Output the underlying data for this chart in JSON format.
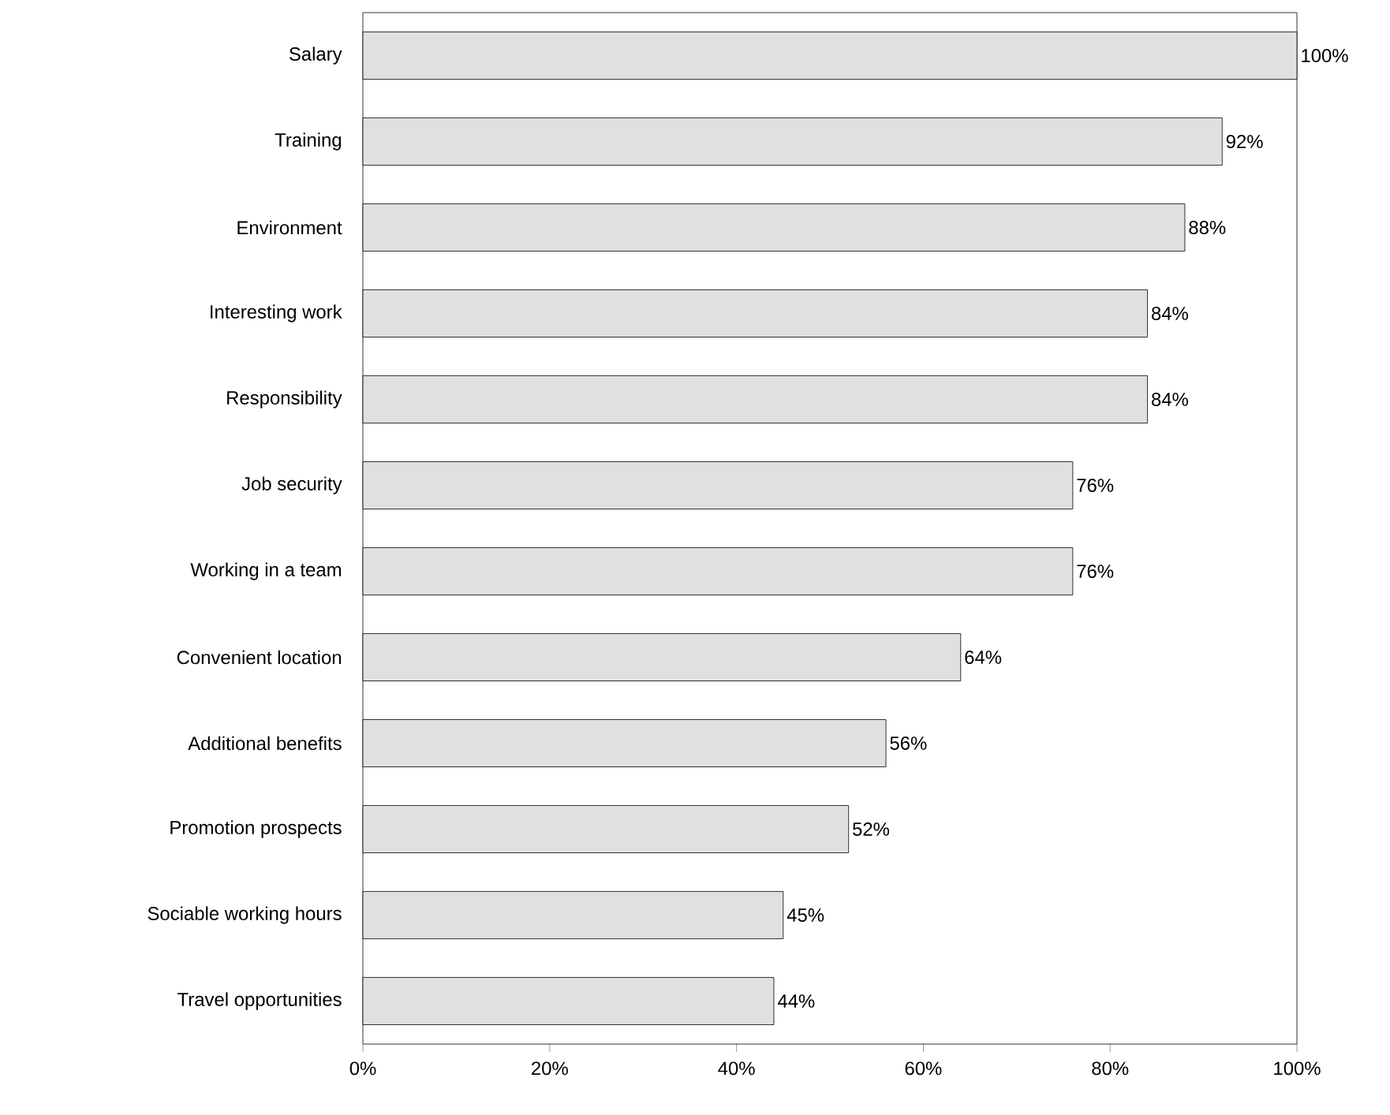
{
  "chart_data": {
    "type": "bar",
    "orientation": "horizontal",
    "categories": [
      "Salary",
      "Training",
      "Environment",
      "Interesting work",
      "Responsibility",
      "Job security",
      "Working in a team",
      "Convenient location",
      "Additional benefits",
      "Promotion prospects",
      "Sociable working hours",
      "Travel opportunities"
    ],
    "values": [
      100,
      92,
      88,
      84,
      84,
      76,
      76,
      64,
      56,
      52,
      45,
      44
    ],
    "value_labels": [
      "100%",
      "92%",
      "88%",
      "84%",
      "84%",
      "76%",
      "76%",
      "64%",
      "56%",
      "52%",
      "45%",
      "44%"
    ],
    "color": "#e0e0e0",
    "xlim": [
      0,
      100
    ],
    "xticks": [
      {
        "value": 0,
        "label": "0%"
      },
      {
        "value": 20,
        "label": "20%"
      },
      {
        "value": 40,
        "label": "40%"
      },
      {
        "value": 60,
        "label": "60%"
      },
      {
        "value": 80,
        "label": "80%"
      },
      {
        "value": 100,
        "label": "100%"
      }
    ],
    "grid": false
  }
}
